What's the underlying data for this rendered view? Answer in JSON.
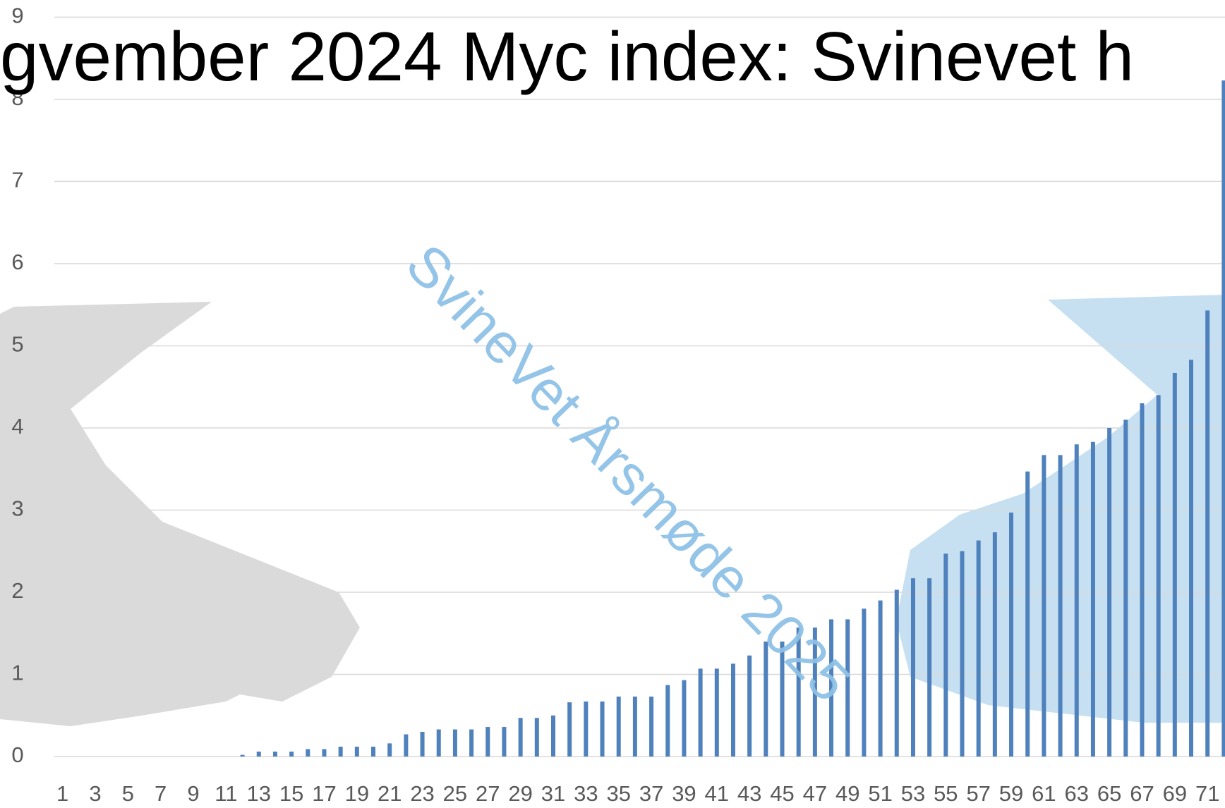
{
  "chart_data": {
    "type": "bar",
    "title": "gvember 2024 Myc index: Svinevet h",
    "annotation": "SvineVet Årsmøde 2025",
    "categories": [
      "1",
      null,
      "3",
      null,
      "5",
      null,
      "7",
      null,
      "9",
      null,
      "11",
      null,
      "13",
      null,
      "15",
      null,
      "17",
      null,
      "19",
      null,
      "21",
      null,
      "23",
      null,
      "25",
      null,
      "27",
      null,
      "29",
      null,
      "31",
      null,
      "33",
      null,
      "35",
      null,
      "37",
      null,
      "39",
      null,
      "41",
      null,
      "43",
      null,
      "45",
      null,
      "47",
      null,
      "49",
      null,
      "51",
      null,
      "53",
      null,
      "55",
      null,
      "57",
      null,
      "59",
      null,
      "61",
      null,
      "63",
      null,
      "65",
      null,
      "67",
      null,
      "69",
      null,
      "71",
      null
    ],
    "values": [
      0,
      0,
      0,
      0,
      0,
      0,
      0,
      0,
      0,
      0,
      0,
      0.02,
      0.06,
      0.06,
      0.06,
      0.09,
      0.09,
      0.12,
      0.12,
      0.12,
      0.16,
      0.27,
      0.3,
      0.33,
      0.33,
      0.33,
      0.36,
      0.36,
      0.47,
      0.47,
      0.5,
      0.66,
      0.67,
      0.67,
      0.73,
      0.73,
      0.73,
      0.87,
      0.93,
      1.07,
      1.07,
      1.13,
      1.23,
      1.4,
      1.4,
      1.57,
      1.57,
      1.67,
      1.67,
      1.8,
      1.9,
      2.03,
      2.17,
      2.17,
      2.47,
      2.5,
      2.63,
      2.73,
      2.97,
      3.47,
      3.67,
      3.67,
      3.8,
      3.83,
      4.0,
      4.1,
      4.3,
      4.4,
      4.67,
      4.83,
      5.43,
      8.23
    ],
    "color": "#4f81bd",
    "ylim": [
      0,
      9
    ],
    "yticks": [
      0,
      1,
      2,
      3,
      4,
      5,
      6,
      7,
      8,
      9
    ],
    "grid": true
  }
}
